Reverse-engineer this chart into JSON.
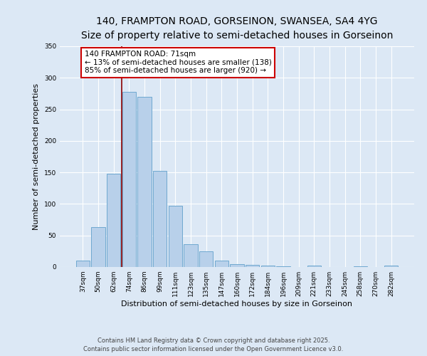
{
  "title1": "140, FRAMPTON ROAD, GORSEINON, SWANSEA, SA4 4YG",
  "title2": "Size of property relative to semi-detached houses in Gorseinon",
  "xlabel": "Distribution of semi-detached houses by size in Gorseinon",
  "ylabel": "Number of semi-detached properties",
  "categories": [
    "37sqm",
    "50sqm",
    "62sqm",
    "74sqm",
    "86sqm",
    "99sqm",
    "111sqm",
    "123sqm",
    "135sqm",
    "147sqm",
    "160sqm",
    "172sqm",
    "184sqm",
    "196sqm",
    "209sqm",
    "221sqm",
    "233sqm",
    "245sqm",
    "258sqm",
    "270sqm",
    "282sqm"
  ],
  "values": [
    10,
    63,
    148,
    278,
    270,
    152,
    97,
    36,
    25,
    10,
    5,
    3,
    2,
    1,
    0,
    2,
    0,
    0,
    1,
    0,
    2
  ],
  "bar_color": "#b8d0ea",
  "bar_edge_color": "#6fa8d0",
  "red_line_x": 2.5,
  "annotation_text": "140 FRAMPTON ROAD: 71sqm\n← 13% of semi-detached houses are smaller (138)\n85% of semi-detached houses are larger (920) →",
  "annotation_box_color": "#ffffff",
  "annotation_box_edge_color": "#cc0000",
  "ylim": [
    0,
    350
  ],
  "yticks": [
    0,
    50,
    100,
    150,
    200,
    250,
    300,
    350
  ],
  "bg_color": "#dce8f5",
  "plot_bg_color": "#dce8f5",
  "footer1": "Contains HM Land Registry data © Crown copyright and database right 2025.",
  "footer2": "Contains public sector information licensed under the Open Government Licence v3.0.",
  "title1_fontsize": 10,
  "title2_fontsize": 9,
  "tick_fontsize": 6.5,
  "ylabel_fontsize": 8,
  "xlabel_fontsize": 8,
  "annotation_fontsize": 7.5,
  "footer_fontsize": 6
}
